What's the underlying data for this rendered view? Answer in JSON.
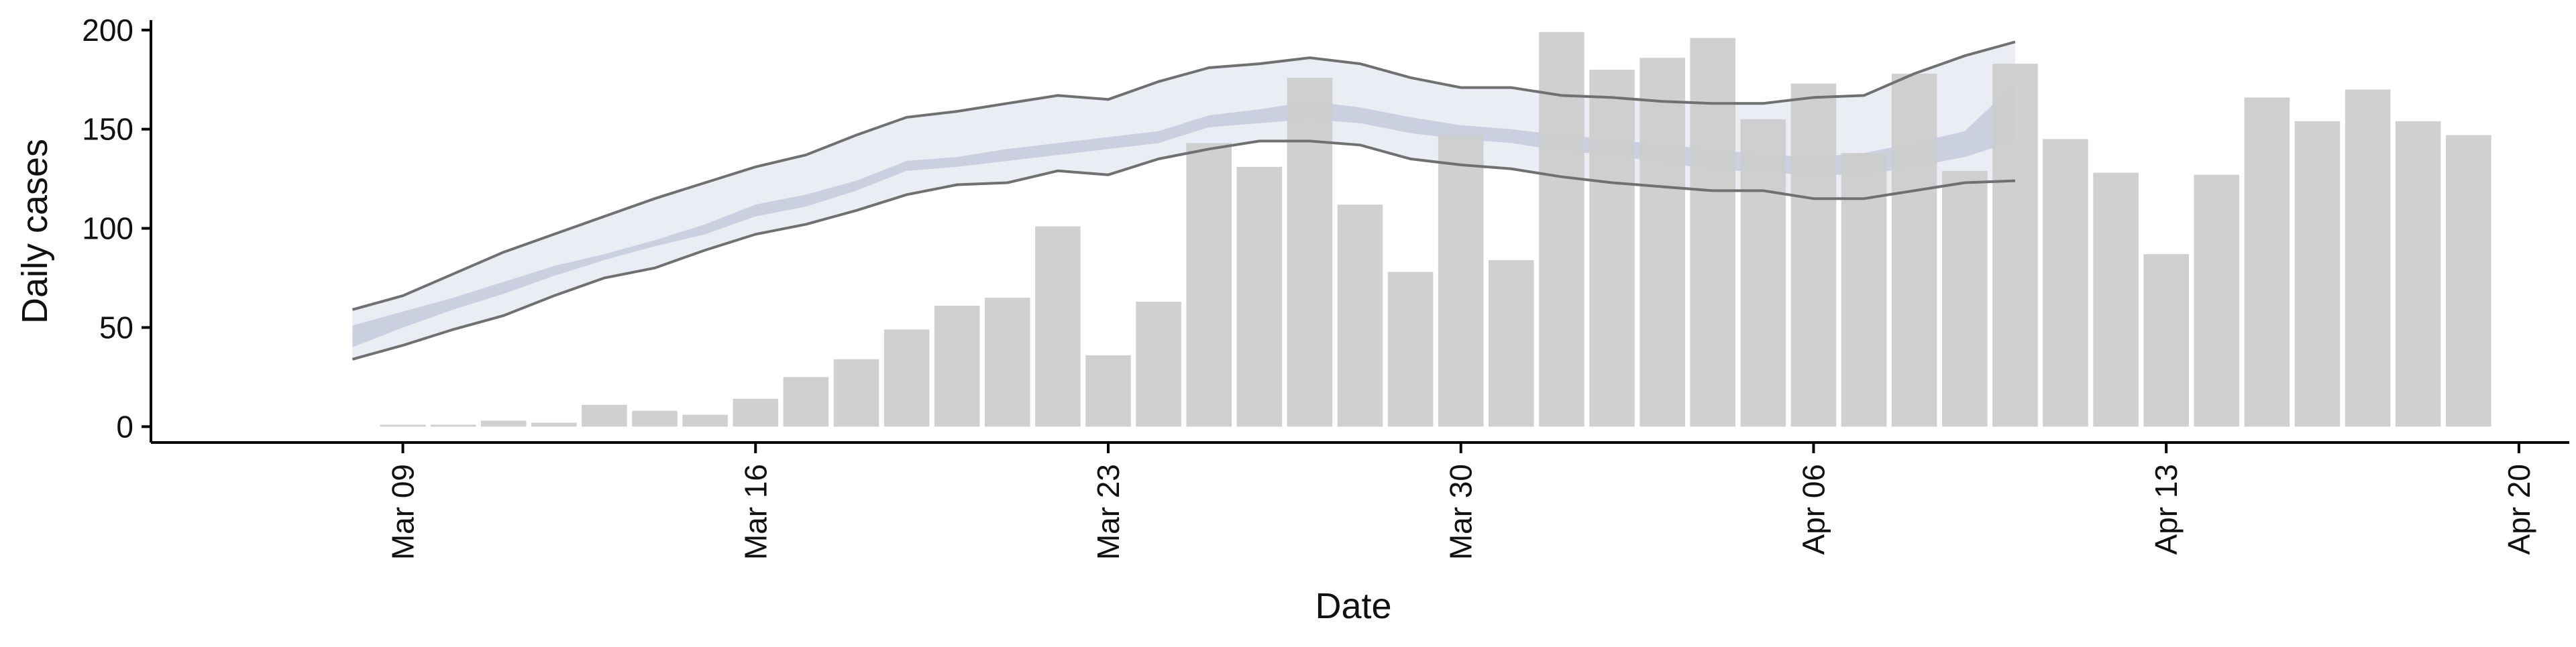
{
  "chart_data": {
    "type": "bar",
    "title": "",
    "xlabel": "Date",
    "ylabel": "Daily cases",
    "ylim": [
      -8,
      205
    ],
    "xlim": [
      "2020-03-04",
      "2020-04-21"
    ],
    "grid": false,
    "legend": "none",
    "x_ticks": [
      {
        "date": "2020-03-09",
        "label": "Mar 09"
      },
      {
        "date": "2020-03-16",
        "label": "Mar 16"
      },
      {
        "date": "2020-03-23",
        "label": "Mar 23"
      },
      {
        "date": "2020-03-30",
        "label": "Mar 30"
      },
      {
        "date": "2020-04-06",
        "label": "Apr 06"
      },
      {
        "date": "2020-04-13",
        "label": "Apr 13"
      },
      {
        "date": "2020-04-20",
        "label": "Apr 20"
      }
    ],
    "y_ticks": [
      0,
      50,
      100,
      150,
      200
    ],
    "bars": {
      "color": "#cccccc",
      "x": [
        "2020-03-09",
        "2020-03-10",
        "2020-03-11",
        "2020-03-12",
        "2020-03-13",
        "2020-03-14",
        "2020-03-15",
        "2020-03-16",
        "2020-03-17",
        "2020-03-18",
        "2020-03-19",
        "2020-03-20",
        "2020-03-21",
        "2020-03-22",
        "2020-03-23",
        "2020-03-24",
        "2020-03-25",
        "2020-03-26",
        "2020-03-27",
        "2020-03-28",
        "2020-03-29",
        "2020-03-30",
        "2020-03-31",
        "2020-04-01",
        "2020-04-02",
        "2020-04-03",
        "2020-04-04",
        "2020-04-05",
        "2020-04-06",
        "2020-04-07",
        "2020-04-08",
        "2020-04-09",
        "2020-04-10",
        "2020-04-11",
        "2020-04-12",
        "2020-04-13",
        "2020-04-14",
        "2020-04-15",
        "2020-04-16",
        "2020-04-17",
        "2020-04-18",
        "2020-04-19"
      ],
      "values": [
        1,
        1,
        3,
        2,
        11,
        8,
        6,
        14,
        25,
        34,
        49,
        61,
        65,
        101,
        36,
        63,
        143,
        131,
        176,
        112,
        78,
        147,
        84,
        199,
        180,
        186,
        196,
        155,
        173,
        138,
        178,
        129,
        183,
        145,
        128,
        87,
        127,
        166,
        154,
        170,
        154,
        147
      ]
    },
    "bands": {
      "x": [
        "2020-03-08",
        "2020-03-09",
        "2020-03-10",
        "2020-03-11",
        "2020-03-12",
        "2020-03-13",
        "2020-03-14",
        "2020-03-15",
        "2020-03-16",
        "2020-03-17",
        "2020-03-18",
        "2020-03-19",
        "2020-03-20",
        "2020-03-21",
        "2020-03-22",
        "2020-03-23",
        "2020-03-24",
        "2020-03-25",
        "2020-03-26",
        "2020-03-27",
        "2020-03-28",
        "2020-03-29",
        "2020-03-30",
        "2020-03-31",
        "2020-04-01",
        "2020-04-02",
        "2020-04-03",
        "2020-04-04",
        "2020-04-05",
        "2020-04-06",
        "2020-04-07",
        "2020-04-08",
        "2020-04-09",
        "2020-04-10"
      ],
      "outer_color": "#e8eaf2",
      "inner_color": "#c4cadc",
      "outer_lower": [
        34,
        41,
        49,
        56,
        66,
        75,
        80,
        89,
        97,
        102,
        109,
        117,
        122,
        123,
        129,
        127,
        135,
        140,
        144,
        144,
        142,
        135,
        132,
        130,
        126,
        123,
        121,
        119,
        119,
        115,
        115,
        119,
        123,
        124
      ],
      "outer_upper": [
        59,
        66,
        77,
        88,
        97,
        106,
        115,
        123,
        131,
        137,
        147,
        156,
        159,
        163,
        167,
        165,
        174,
        181,
        183,
        186,
        183,
        176,
        171,
        171,
        167,
        166,
        164,
        163,
        163,
        166,
        167,
        178,
        187,
        194
      ],
      "inner_lower": [
        40,
        50,
        59,
        67,
        76,
        84,
        91,
        97,
        106,
        111,
        119,
        129,
        131,
        134,
        137,
        140,
        143,
        151,
        153,
        155,
        153,
        148,
        145,
        143,
        139,
        137,
        133,
        130,
        128,
        127,
        127,
        131,
        136,
        144
      ],
      "inner_upper": [
        51,
        58,
        65,
        73,
        81,
        87,
        94,
        102,
        112,
        117,
        124,
        134,
        136,
        140,
        143,
        146,
        149,
        157,
        160,
        164,
        161,
        156,
        152,
        150,
        147,
        145,
        142,
        140,
        137,
        136,
        138,
        143,
        149,
        173
      ],
      "line_color": "#707070"
    }
  }
}
